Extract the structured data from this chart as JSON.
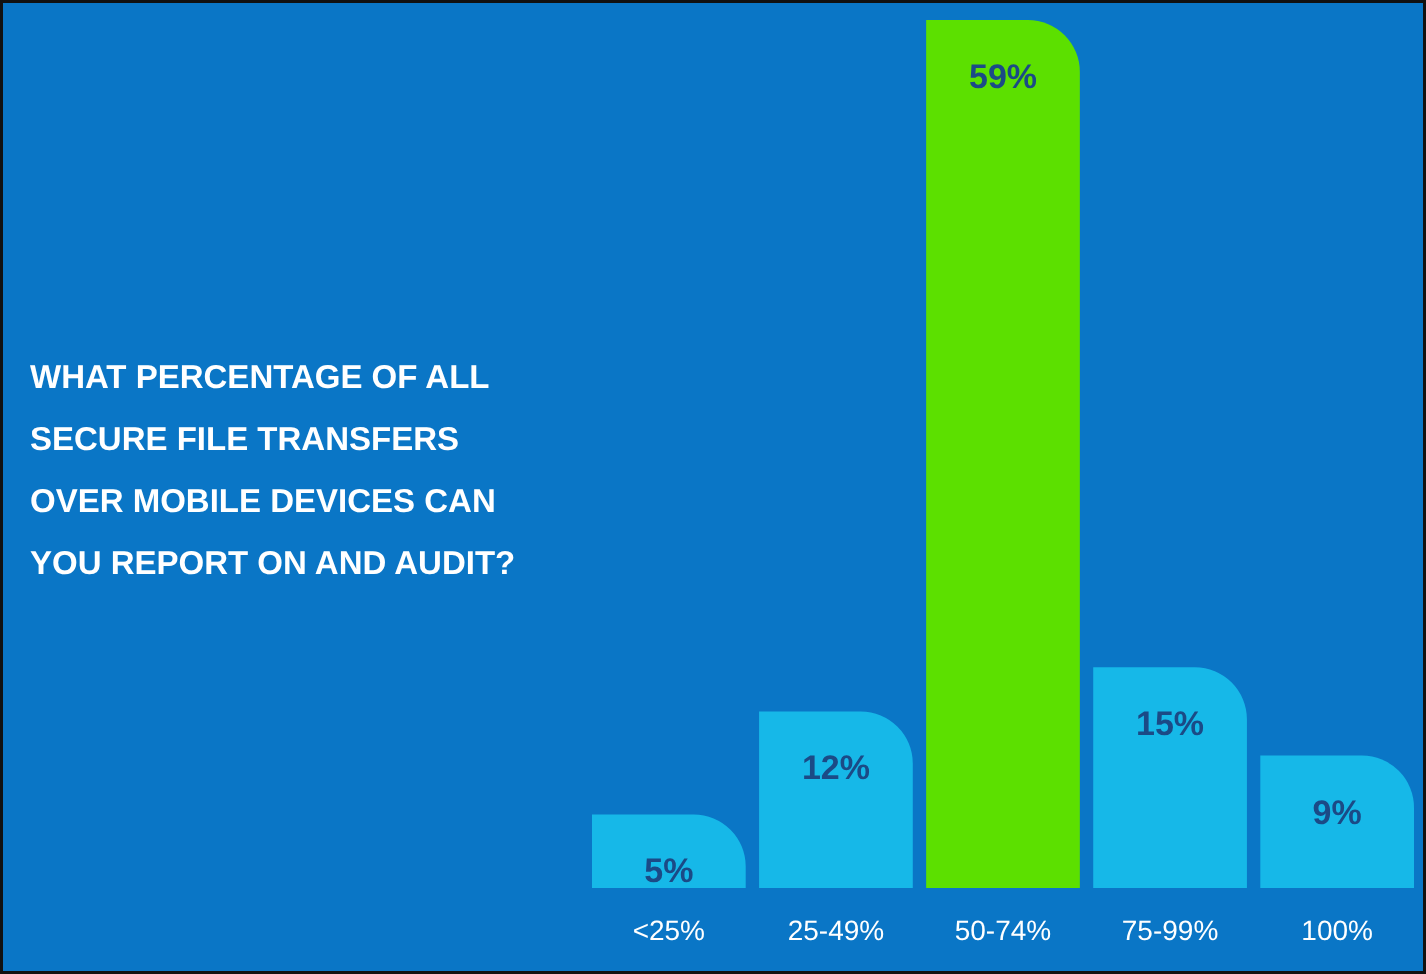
{
  "chart_data": {
    "type": "bar",
    "title": "WHAT PERCENTAGE OF ALL SECURE FILE TRANSFERS OVER MOBILE DEVICES CAN YOU REPORT ON AND AUDIT?",
    "categories": [
      "<25%",
      "25-49%",
      "50-74%",
      "75-99%",
      "100%"
    ],
    "values": [
      5,
      12,
      59,
      15,
      9
    ],
    "colors": [
      "#16b8e8",
      "#16b8e8",
      "#5ce000",
      "#16b8e8",
      "#16b8e8"
    ],
    "value_labels": [
      "5%",
      "12%",
      "59%",
      "15%",
      "9%"
    ]
  }
}
